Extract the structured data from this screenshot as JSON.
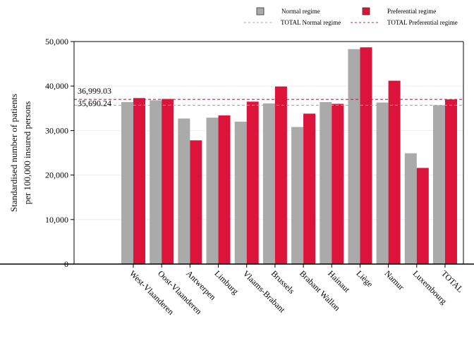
{
  "chart_data": {
    "type": "bar",
    "ylabel": [
      "Standardised number of patients",
      "per 100,000 insured persons"
    ],
    "ylim": [
      0,
      50000
    ],
    "yticks": [
      0,
      10000,
      20000,
      30000,
      40000,
      50000
    ],
    "ytick_labels": [
      "0",
      "10,000",
      "20,000",
      "30,000",
      "40,000",
      "50,000"
    ],
    "categories": [
      "West-Vlaanderen",
      "Oost-Vlaanderen",
      "Antwerpen",
      "Limburg",
      "Vlaams-Brabant",
      "Brussels",
      "Brabant Wallon",
      "Hainaut",
      "Liège",
      "Namur",
      "Luxembourg",
      "TOTAL"
    ],
    "series": [
      {
        "name": "Normal regime",
        "color": "#aaaaaa",
        "values": [
          36400,
          36800,
          32700,
          32900,
          32000,
          36100,
          30800,
          36400,
          48300,
          36300,
          24900,
          35690.24
        ]
      },
      {
        "name": "Preferential regime",
        "color": "#dc143c",
        "values": [
          37300,
          37100,
          27800,
          33400,
          36500,
          39900,
          33800,
          36000,
          48700,
          41200,
          21600,
          36999.03
        ]
      }
    ],
    "reference_lines": [
      {
        "name": "TOTAL Normal regime",
        "value": 35690.24,
        "label": "35,690.24",
        "color": "#aaaaaa"
      },
      {
        "name": "TOTAL Preferential regime",
        "value": 36999.03,
        "label": "36,999.03",
        "color": "#dc143c"
      }
    ],
    "legend_position": "top"
  }
}
